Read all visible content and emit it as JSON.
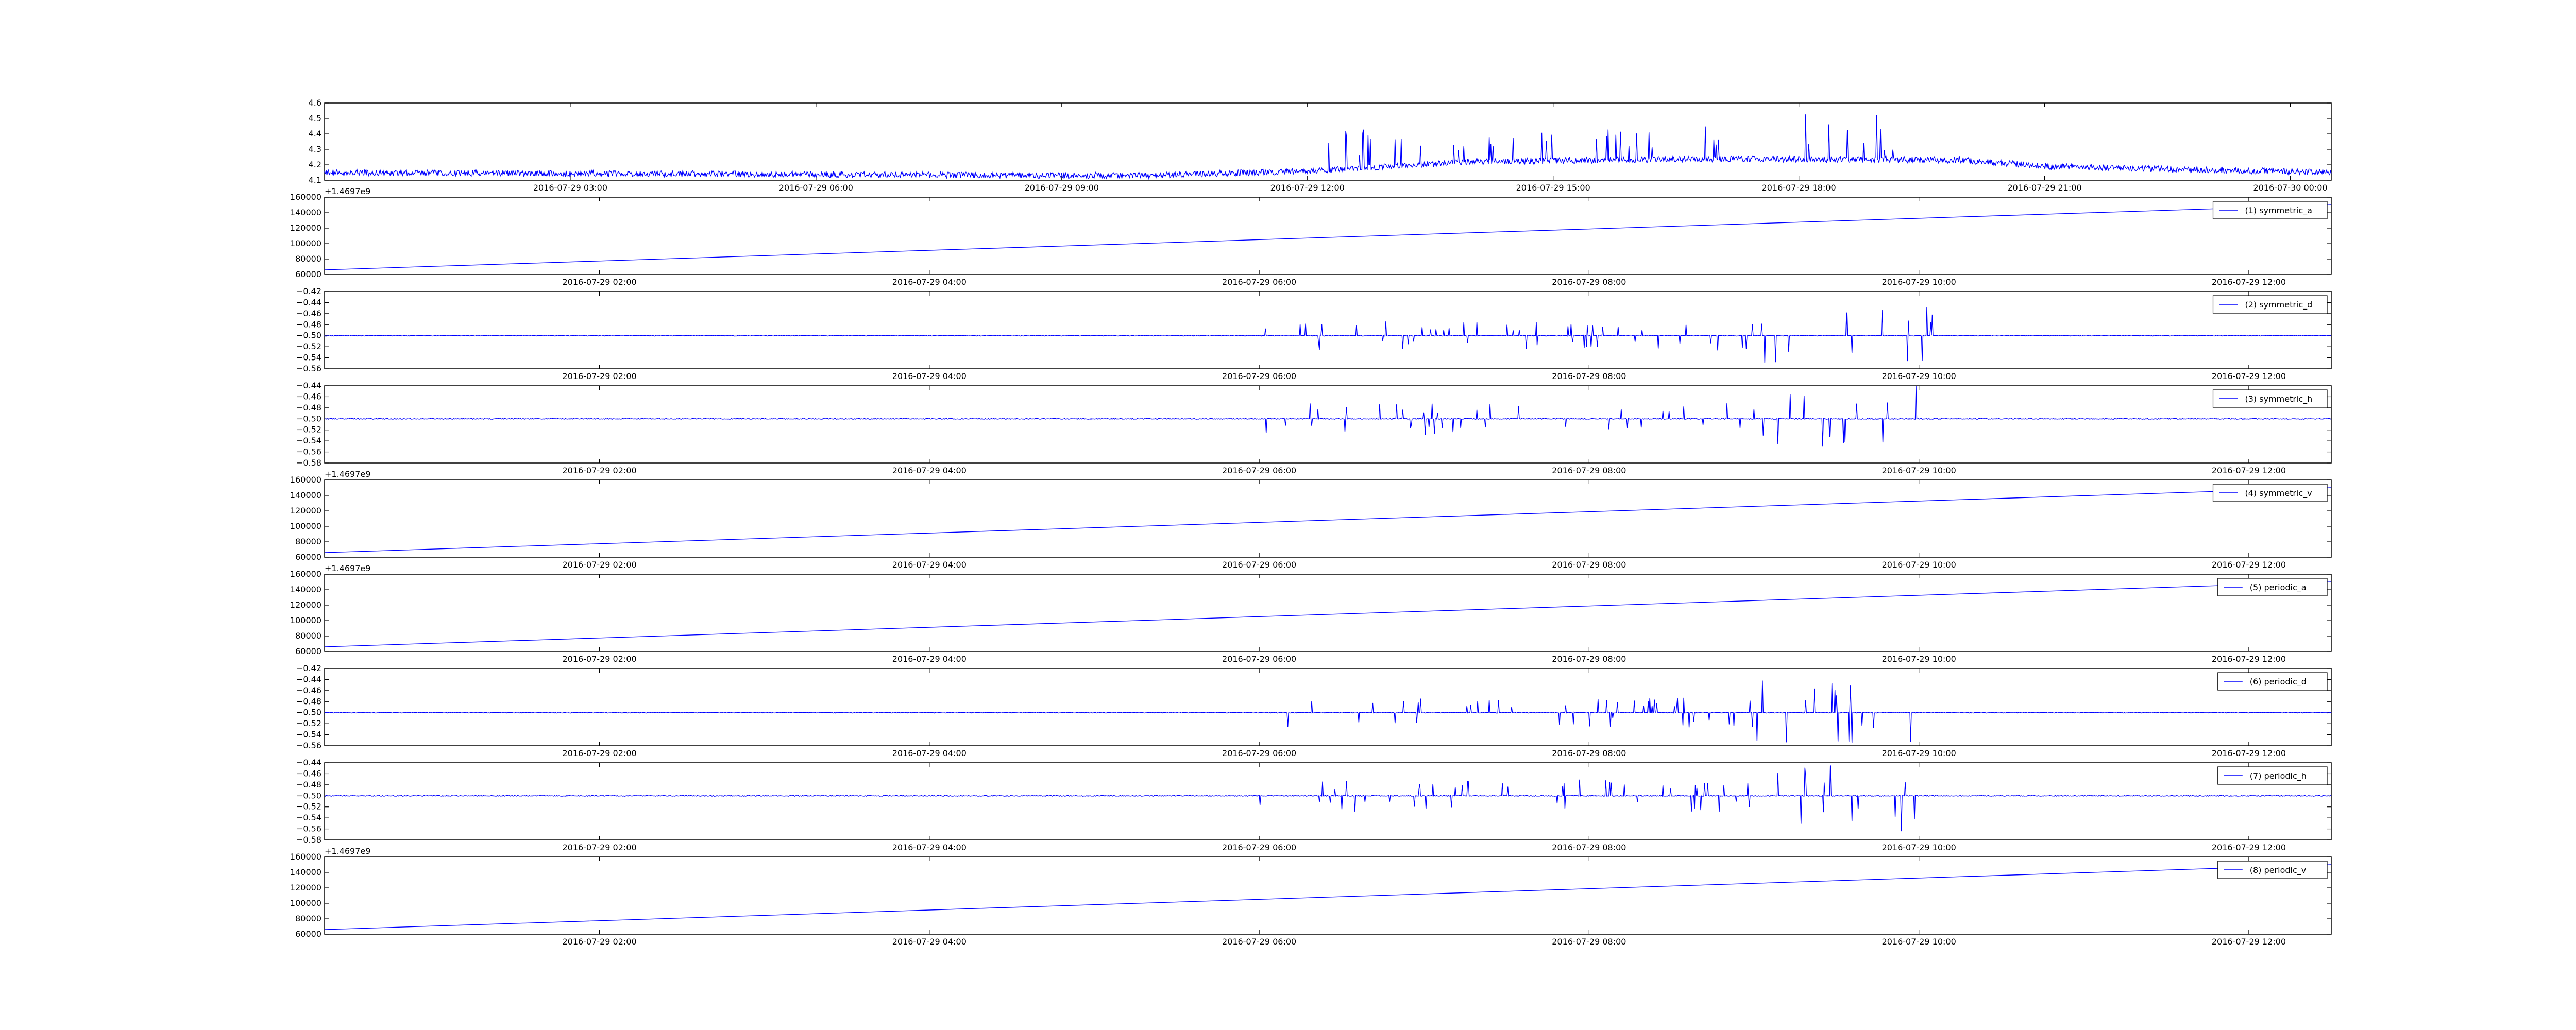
{
  "colors": {
    "line": "#0000ff",
    "axes": "#000000",
    "legend_border": "#000000",
    "background": "#ffffff"
  },
  "chart_data": [
    {
      "type": "line",
      "x_axis": "datetime",
      "xlim": [
        "2016-07-29 00:00",
        "2016-07-30 00:30"
      ],
      "xticks": [
        "2016-07-29 03:00",
        "2016-07-29 06:00",
        "2016-07-29 09:00",
        "2016-07-29 12:00",
        "2016-07-29 15:00",
        "2016-07-29 18:00",
        "2016-07-29 21:00",
        "2016-07-30 00:00"
      ],
      "ylim": [
        4.1,
        4.6
      ],
      "yticks": [
        "4.1",
        "4.2",
        "4.3",
        "4.4",
        "4.5",
        "4.6"
      ],
      "legend": null,
      "pattern": "baseline with spiky bursts",
      "series": [
        {
          "baseline": [
            [
              "2016-07-29 00:00",
              4.15
            ],
            [
              "2016-07-29 10:00",
              4.13
            ],
            [
              "2016-07-29 12:00",
              4.16
            ],
            [
              "2016-07-29 14:00",
              4.22
            ],
            [
              "2016-07-29 17:00",
              4.24
            ],
            [
              "2016-07-29 20:00",
              4.23
            ],
            [
              "2016-07-29 21:00",
              4.19
            ],
            [
              "2016-07-30 00:30",
              4.15
            ]
          ],
          "noise": 0.04,
          "bursts": [
            [
              "2016-07-29 12:00",
              "2016-07-29 17:00",
              4.45
            ],
            [
              "2016-07-29 17:00",
              "2016-07-29 19:00",
              4.55
            ],
            [
              "2016-07-29 19:00",
              "2016-07-29 20:00",
              4.3
            ]
          ]
        }
      ]
    },
    {
      "type": "line",
      "x_axis": "datetime",
      "xlim": [
        "2016-07-29 00:20",
        "2016-07-29 12:30"
      ],
      "xticks": [
        "2016-07-29 02:00",
        "2016-07-29 04:00",
        "2016-07-29 06:00",
        "2016-07-29 08:00",
        "2016-07-29 10:00",
        "2016-07-29 12:00"
      ],
      "ylim": [
        60000,
        160000
      ],
      "yticks": [
        "60000",
        "80000",
        "100000",
        "120000",
        "140000",
        "160000"
      ],
      "offset_label": "+1.4697e9",
      "legend": "(1) symmetric_a",
      "legend_loc": "upper right",
      "pattern": "linear",
      "series": [
        {
          "start": 66000,
          "end": 150000
        }
      ]
    },
    {
      "type": "line",
      "x_axis": "datetime",
      "xlim": [
        "2016-07-29 00:20",
        "2016-07-29 12:30"
      ],
      "xticks": [
        "2016-07-29 02:00",
        "2016-07-29 04:00",
        "2016-07-29 06:00",
        "2016-07-29 08:00",
        "2016-07-29 10:00",
        "2016-07-29 12:00"
      ],
      "ylim": [
        -0.56,
        -0.42
      ],
      "yticks": [
        "−0.56",
        "−0.54",
        "−0.52",
        "−0.50",
        "−0.48",
        "−0.46",
        "−0.44",
        "−0.42"
      ],
      "legend": "(2) symmetric_d",
      "legend_loc": "upper right",
      "pattern": "baseline with spiky bursts",
      "series": [
        {
          "baseline": [
            [
              "2016-07-29 00:20",
              -0.5
            ],
            [
              "2016-07-29 12:30",
              -0.5
            ]
          ],
          "noise": 0.0015,
          "bursts": [
            [
              "2016-07-29 06:00",
              "2016-07-29 09:00",
              0.028
            ],
            [
              "2016-07-29 09:00",
              "2016-07-29 10:10",
              0.06
            ]
          ]
        }
      ]
    },
    {
      "type": "line",
      "x_axis": "datetime",
      "xlim": [
        "2016-07-29 00:20",
        "2016-07-29 12:30"
      ],
      "xticks": [
        "2016-07-29 02:00",
        "2016-07-29 04:00",
        "2016-07-29 06:00",
        "2016-07-29 08:00",
        "2016-07-29 10:00",
        "2016-07-29 12:00"
      ],
      "ylim": [
        -0.58,
        -0.44
      ],
      "yticks": [
        "−0.58",
        "−0.56",
        "−0.54",
        "−0.52",
        "−0.50",
        "−0.48",
        "−0.46",
        "−0.44"
      ],
      "legend": "(3) symmetric_h",
      "legend_loc": "upper right",
      "pattern": "baseline with spiky bursts",
      "series": [
        {
          "baseline": [
            [
              "2016-07-29 00:20",
              -0.5
            ],
            [
              "2016-07-29 12:30",
              -0.5
            ]
          ],
          "noise": 0.0015,
          "bursts": [
            [
              "2016-07-29 06:00",
              "2016-07-29 09:00",
              0.03
            ],
            [
              "2016-07-29 09:00",
              "2016-07-29 10:10",
              0.065
            ]
          ]
        }
      ]
    },
    {
      "type": "line",
      "x_axis": "datetime",
      "xlim": [
        "2016-07-29 00:20",
        "2016-07-29 12:30"
      ],
      "xticks": [
        "2016-07-29 02:00",
        "2016-07-29 04:00",
        "2016-07-29 06:00",
        "2016-07-29 08:00",
        "2016-07-29 10:00",
        "2016-07-29 12:00"
      ],
      "ylim": [
        60000,
        160000
      ],
      "yticks": [
        "60000",
        "80000",
        "100000",
        "120000",
        "140000",
        "160000"
      ],
      "offset_label": "+1.4697e9",
      "legend": "(4) symmetric_v",
      "legend_loc": "upper right",
      "pattern": "linear",
      "series": [
        {
          "start": 66000,
          "end": 150000
        }
      ]
    },
    {
      "type": "line",
      "x_axis": "datetime",
      "xlim": [
        "2016-07-29 00:20",
        "2016-07-29 12:30"
      ],
      "xticks": [
        "2016-07-29 02:00",
        "2016-07-29 04:00",
        "2016-07-29 06:00",
        "2016-07-29 08:00",
        "2016-07-29 10:00",
        "2016-07-29 12:00"
      ],
      "ylim": [
        60000,
        160000
      ],
      "yticks": [
        "60000",
        "80000",
        "100000",
        "120000",
        "140000",
        "160000"
      ],
      "offset_label": "+1.4697e9",
      "legend": "(5) periodic_a",
      "legend_loc": "upper right",
      "pattern": "linear",
      "series": [
        {
          "start": 66000,
          "end": 150000
        }
      ]
    },
    {
      "type": "line",
      "x_axis": "datetime",
      "xlim": [
        "2016-07-29 00:20",
        "2016-07-29 12:30"
      ],
      "xticks": [
        "2016-07-29 02:00",
        "2016-07-29 04:00",
        "2016-07-29 06:00",
        "2016-07-29 08:00",
        "2016-07-29 10:00",
        "2016-07-29 12:00"
      ],
      "ylim": [
        -0.56,
        -0.42
      ],
      "yticks": [
        "−0.56",
        "−0.54",
        "−0.52",
        "−0.50",
        "−0.48",
        "−0.46",
        "−0.44",
        "−0.42"
      ],
      "legend": "(6) periodic_d",
      "legend_loc": "upper right",
      "pattern": "baseline with spiky bursts",
      "series": [
        {
          "baseline": [
            [
              "2016-07-29 00:20",
              -0.5
            ],
            [
              "2016-07-29 12:30",
              -0.5
            ]
          ],
          "noise": 0.0015,
          "bursts": [
            [
              "2016-07-29 06:00",
              "2016-07-29 09:00",
              0.028
            ],
            [
              "2016-07-29 09:00",
              "2016-07-29 10:10",
              0.06
            ]
          ]
        }
      ]
    },
    {
      "type": "line",
      "x_axis": "datetime",
      "xlim": [
        "2016-07-29 00:20",
        "2016-07-29 12:30"
      ],
      "xticks": [
        "2016-07-29 02:00",
        "2016-07-29 04:00",
        "2016-07-29 06:00",
        "2016-07-29 08:00",
        "2016-07-29 10:00",
        "2016-07-29 12:00"
      ],
      "ylim": [
        -0.58,
        -0.44
      ],
      "yticks": [
        "−0.58",
        "−0.56",
        "−0.54",
        "−0.52",
        "−0.50",
        "−0.48",
        "−0.46",
        "−0.44"
      ],
      "legend": "(7) periodic_h",
      "legend_loc": "upper right",
      "pattern": "baseline with spiky bursts",
      "series": [
        {
          "baseline": [
            [
              "2016-07-29 00:20",
              -0.5
            ],
            [
              "2016-07-29 12:30",
              -0.5
            ]
          ],
          "noise": 0.0015,
          "bursts": [
            [
              "2016-07-29 06:00",
              "2016-07-29 09:00",
              0.03
            ],
            [
              "2016-07-29 09:00",
              "2016-07-29 10:10",
              0.065
            ]
          ]
        }
      ]
    },
    {
      "type": "line",
      "x_axis": "datetime",
      "xlim": [
        "2016-07-29 00:20",
        "2016-07-29 12:30"
      ],
      "xticks": [
        "2016-07-29 02:00",
        "2016-07-29 04:00",
        "2016-07-29 06:00",
        "2016-07-29 08:00",
        "2016-07-29 10:00",
        "2016-07-29 12:00"
      ],
      "ylim": [
        60000,
        160000
      ],
      "yticks": [
        "60000",
        "80000",
        "100000",
        "120000",
        "140000",
        "160000"
      ],
      "offset_label": "+1.4697e9",
      "legend": "(8) periodic_v",
      "legend_loc": "upper right",
      "pattern": "linear",
      "series": [
        {
          "start": 66000,
          "end": 150000
        }
      ]
    }
  ]
}
